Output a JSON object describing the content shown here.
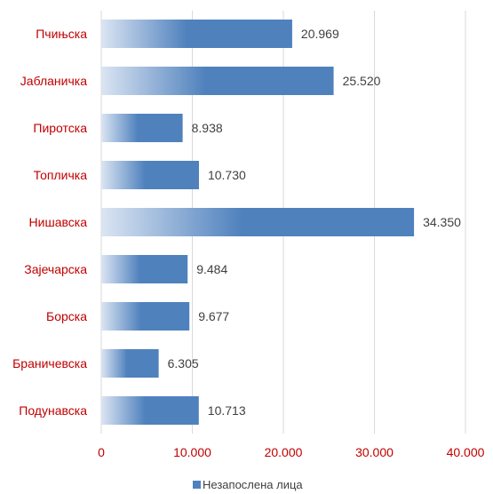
{
  "chart_data": {
    "type": "bar",
    "orientation": "horizontal",
    "categories": [
      "Пчињска",
      "Јабланичка",
      "Пиротска",
      "Топличка",
      "Нишавска",
      "Зајечарска",
      "Борска",
      "Браничевска",
      "Подунавска"
    ],
    "series": [
      {
        "name": "Незапослена лица",
        "values": [
          20969,
          25520,
          8938,
          10730,
          34350,
          9484,
          9677,
          6305,
          10713
        ],
        "value_labels": [
          "20.969",
          "25.520",
          "8.938",
          "10.730",
          "34.350",
          "9.484",
          "9.677",
          "6.305",
          "10.713"
        ]
      }
    ],
    "xlim": [
      0,
      40000
    ],
    "x_ticks": [
      0,
      10000,
      20000,
      30000,
      40000
    ],
    "x_tick_labels": [
      "0",
      "10.000",
      "20.000",
      "30.000",
      "40.000"
    ],
    "grid": "vertical",
    "legend_position": "bottom"
  },
  "colors": {
    "bar": "#4f81bd",
    "bar_fade": "#dbe5f3",
    "category_text": "#c00000",
    "tick_text": "#c00000",
    "grid": "#d9d9d9",
    "data_label_text": "#404040"
  }
}
